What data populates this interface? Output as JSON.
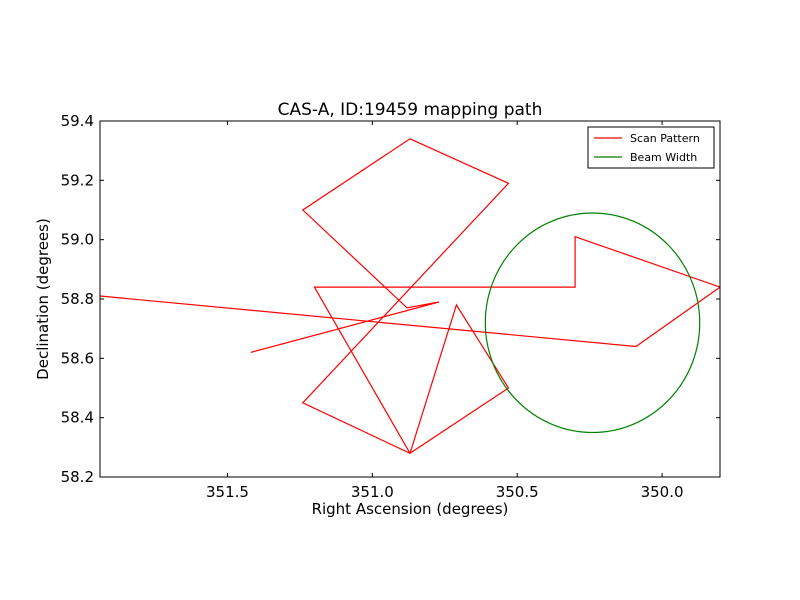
{
  "chart_data": {
    "type": "line",
    "title": "CAS-A, ID:19459 mapping path",
    "xlabel": "Right Ascension (degrees)",
    "ylabel": "Declination (degrees)",
    "xlim": [
      351.94,
      349.8
    ],
    "ylim": [
      58.2,
      59.4
    ],
    "x_inverted": true,
    "x_ticks": [
      {
        "value": 351.5,
        "label": "351.5"
      },
      {
        "value": 351.0,
        "label": "351.0"
      },
      {
        "value": 350.5,
        "label": "350.5"
      },
      {
        "value": 350.0,
        "label": "350.0"
      }
    ],
    "y_ticks": [
      {
        "value": 58.2,
        "label": "58.2"
      },
      {
        "value": 58.4,
        "label": "58.4"
      },
      {
        "value": 58.6,
        "label": "58.6"
      },
      {
        "value": 58.8,
        "label": "58.8"
      },
      {
        "value": 59.0,
        "label": "59.0"
      },
      {
        "value": 59.2,
        "label": "59.2"
      },
      {
        "value": 59.4,
        "label": "59.4"
      }
    ],
    "grid": false,
    "legend_position": "top-right",
    "series": [
      {
        "name": "Scan Pattern",
        "color": "#ff0000",
        "x": [
          351.42,
          350.77,
          350.88,
          351.24,
          350.87,
          350.53,
          351.24,
          350.87,
          350.71,
          350.53,
          350.87,
          351.2,
          350.3,
          350.3,
          349.8,
          350.09,
          351.94
        ],
        "y": [
          58.62,
          58.79,
          58.77,
          59.1,
          59.34,
          59.19,
          58.45,
          58.28,
          58.78,
          58.5,
          58.28,
          58.84,
          58.84,
          59.01,
          58.84,
          58.64,
          58.81
        ]
      },
      {
        "name": "Beam Width",
        "color": "#008000",
        "center_x": 350.24,
        "center_y": 58.72,
        "radius_x": 0.37,
        "radius_y": 0.37
      }
    ]
  }
}
